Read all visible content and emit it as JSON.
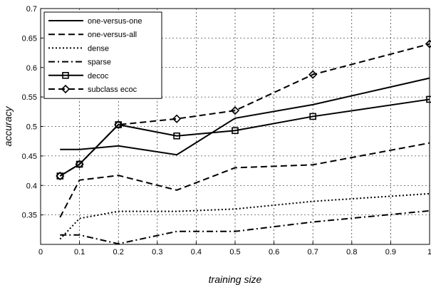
{
  "chart_data": {
    "type": "line",
    "title": "",
    "xlabel": "training size",
    "ylabel": "accuracy",
    "xlim": [
      0,
      1
    ],
    "ylim": [
      0.3,
      0.7
    ],
    "x_ticks": [
      0,
      0.1,
      0.2,
      0.3,
      0.4,
      0.5,
      0.6,
      0.7,
      0.8,
      0.9,
      1
    ],
    "x_tick_labels": [
      "0",
      "0.1",
      "0.2",
      "0.3",
      "0.4",
      "0.5",
      "0.6",
      "0.7",
      "0.8",
      "0.9",
      "1"
    ],
    "y_ticks": [
      0.35,
      0.4,
      0.45,
      0.5,
      0.55,
      0.6,
      0.65,
      0.7
    ],
    "y_tick_labels": [
      "0.35",
      "0.4",
      "0.45",
      "0.5",
      "0.55",
      "0.6",
      "0.65",
      "0.7"
    ],
    "grid": true,
    "legend_position": "top-left",
    "series": [
      {
        "name": "one-versus-one",
        "style": "solid",
        "marker": "none",
        "x": [
          0.05,
          0.1,
          0.2,
          0.35,
          0.5,
          0.7,
          1.0
        ],
        "y": [
          0.461,
          0.461,
          0.467,
          0.452,
          0.514,
          0.537,
          0.582
        ]
      },
      {
        "name": "one-versus-all",
        "style": "dashed",
        "marker": "none",
        "x": [
          0.05,
          0.1,
          0.2,
          0.35,
          0.5,
          0.7,
          1.0
        ],
        "y": [
          0.346,
          0.409,
          0.417,
          0.392,
          0.43,
          0.435,
          0.472
        ]
      },
      {
        "name": "dense",
        "style": "dotted",
        "marker": "none",
        "x": [
          0.05,
          0.1,
          0.2,
          0.35,
          0.5,
          0.7,
          1.0
        ],
        "y": [
          0.309,
          0.344,
          0.356,
          0.356,
          0.36,
          0.373,
          0.386
        ]
      },
      {
        "name": "sparse",
        "style": "dashdot",
        "marker": "none",
        "x": [
          0.05,
          0.1,
          0.2,
          0.35,
          0.5,
          0.7,
          1.0
        ],
        "y": [
          0.316,
          0.316,
          0.301,
          0.322,
          0.322,
          0.338,
          0.357
        ]
      },
      {
        "name": "decoc",
        "style": "solid",
        "marker": "square",
        "x": [
          0.05,
          0.1,
          0.2,
          0.35,
          0.5,
          0.7,
          1.0
        ],
        "y": [
          0.416,
          0.436,
          0.503,
          0.484,
          0.493,
          0.517,
          0.546
        ]
      },
      {
        "name": "subclass ecoc",
        "style": "dashed",
        "marker": "diamond",
        "x": [
          0.05,
          0.1,
          0.2,
          0.35,
          0.5,
          0.7,
          1.0
        ],
        "y": [
          0.416,
          0.436,
          0.503,
          0.513,
          0.527,
          0.588,
          0.64
        ]
      }
    ]
  }
}
